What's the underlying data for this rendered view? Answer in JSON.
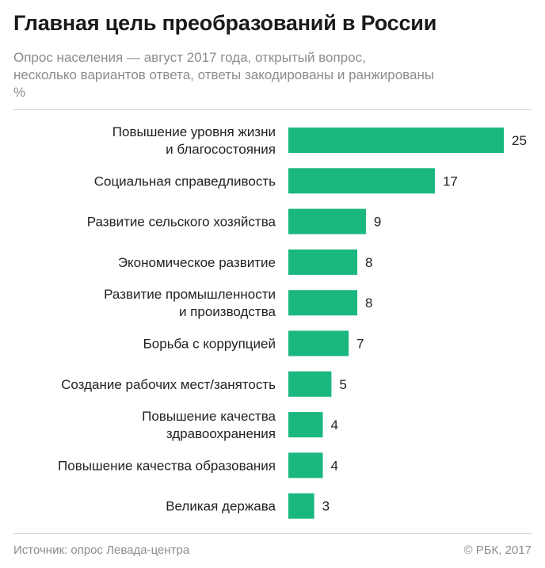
{
  "header": {
    "title": "Главная цель преобразований в России",
    "subtitle_lines": [
      "Опрос населения — август 2017 года, открытый вопрос,",
      "несколько вариантов ответа, ответы закодированы и ранжированы",
      "%"
    ]
  },
  "chart_data": {
    "type": "bar",
    "orientation": "horizontal",
    "categories": [
      [
        "Повышение уровня жизни",
        "и благосостояния"
      ],
      [
        "Социальная справедливость"
      ],
      [
        "Развитие сельского хозяйства"
      ],
      [
        "Экономическое развитие"
      ],
      [
        "Развитие промышленности",
        "и производства"
      ],
      [
        "Борьба с коррупцией"
      ],
      [
        "Создание рабочих мест/занятость"
      ],
      [
        "Повышение качества",
        "здравоохранения"
      ],
      [
        "Повышение качества образования"
      ],
      [
        "Великая держава"
      ]
    ],
    "values": [
      25,
      17,
      9,
      8,
      8,
      7,
      5,
      4,
      4,
      3
    ],
    "xlim": [
      0,
      25
    ],
    "bar_color": "#1ab77e",
    "grid": false,
    "legend": "none"
  },
  "footer": {
    "source": "Источник: опрос Левада-центра",
    "copyright": "© РБК, 2017"
  }
}
